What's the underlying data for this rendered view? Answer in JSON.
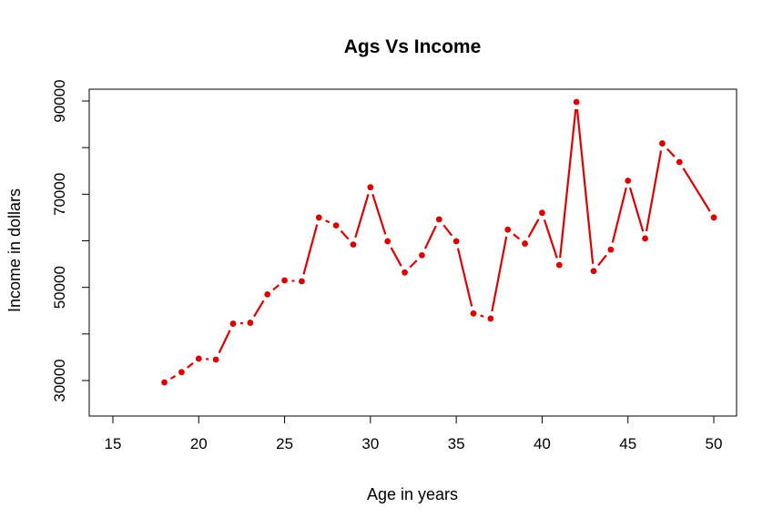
{
  "chart_data": {
    "type": "line",
    "title": "Ags Vs Income",
    "xlabel": "Age in years",
    "ylabel": "Income in dollars",
    "xlim": [
      15,
      50
    ],
    "ylim": [
      23000,
      92500
    ],
    "xticks": [
      15,
      20,
      25,
      30,
      35,
      40,
      45,
      50
    ],
    "yticks": [
      30000,
      50000,
      70000,
      90000
    ],
    "grid": false,
    "line_style": "line with point markers",
    "colors": {
      "series": "#dd0000",
      "axes": "#000000",
      "background": "#ffffff"
    },
    "series": [
      {
        "x": [
          18,
          19,
          20,
          21,
          22,
          23,
          24,
          25,
          26,
          27,
          28,
          29,
          30,
          31,
          32,
          33,
          34,
          35,
          36,
          37,
          38,
          39,
          40,
          41,
          42,
          43,
          44,
          45,
          46,
          47,
          48,
          50
        ],
        "y": [
          29600,
          31800,
          34700,
          34500,
          42200,
          42400,
          48500,
          51500,
          51300,
          65000,
          63300,
          59200,
          71500,
          59900,
          53200,
          56900,
          64600,
          59900,
          44400,
          43300,
          62400,
          59400,
          66000,
          54800,
          89800,
          53500,
          58100,
          72900,
          60500,
          80900,
          76900,
          65000
        ]
      }
    ]
  }
}
